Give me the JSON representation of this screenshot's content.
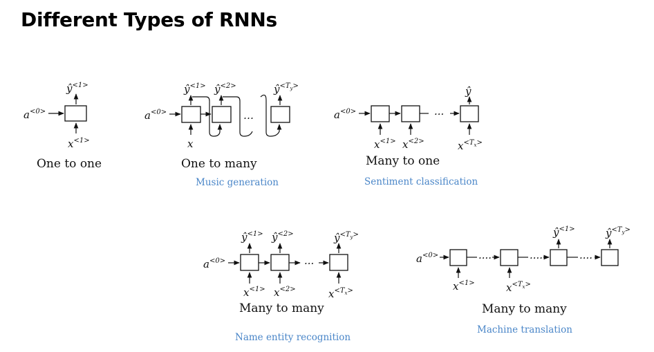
{
  "title": "Different Types of RNNs",
  "diagrams": {
    "one_to_one": {
      "caption": "One to one",
      "a0": "a",
      "a0_sup": "<0>",
      "y": "ŷ",
      "y_sup": "<1>",
      "x": "x",
      "x_sup": "<1>"
    },
    "one_to_many": {
      "caption": "One to many",
      "application": "Music generation",
      "a0": "a",
      "a0_sup": "<0>",
      "y1": "ŷ",
      "y1_sup": "<1>",
      "y2": "ŷ",
      "y2_sup": "<2>",
      "yT": "ŷ",
      "yT_sup": "<T",
      "yT_sub": "y",
      "yT_close": ">",
      "x": "x",
      "dots": "…"
    },
    "many_to_one": {
      "caption": "Many to one",
      "application": "Sentiment classification",
      "a0": "a",
      "a0_sup": "<0>",
      "y": "ŷ",
      "x1": "x",
      "x1_sup": "<1>",
      "x2": "x",
      "x2_sup": "<2>",
      "xT": "x",
      "xT_sup": "<T",
      "xT_sub": "x",
      "xT_close": ">",
      "dots": "···"
    },
    "many_to_many_equal": {
      "caption": "Many to many",
      "application": "Name entity recognition",
      "a0": "a",
      "a0_sup": "<0>",
      "y1": "ŷ",
      "y1_sup": "<1>",
      "y2": "ŷ",
      "y2_sup": "<2>",
      "yT": "ŷ",
      "yT_sup": "<T",
      "yT_sub": "y",
      "yT_close": ">",
      "x1": "x",
      "x1_sup": "<1>",
      "x2": "x",
      "x2_sup": "<2>",
      "xT": "x",
      "xT_sup": "<T",
      "xT_sub": "x",
      "xT_close": ">",
      "dots": "···"
    },
    "many_to_many_encdec": {
      "caption": "Many to many",
      "application": "Machine translation",
      "a0": "a",
      "a0_sup": "<0>",
      "y1": "ŷ",
      "y1_sup": "<1>",
      "yT": "ŷ",
      "yT_sup": "<T",
      "yT_sub": "y",
      "yT_close": ">",
      "x1": "x",
      "x1_sup": "<1>",
      "xT": "x",
      "xT_sup": "<T",
      "xT_sub": "x",
      "xT_close": ">",
      "dots": "····"
    }
  }
}
